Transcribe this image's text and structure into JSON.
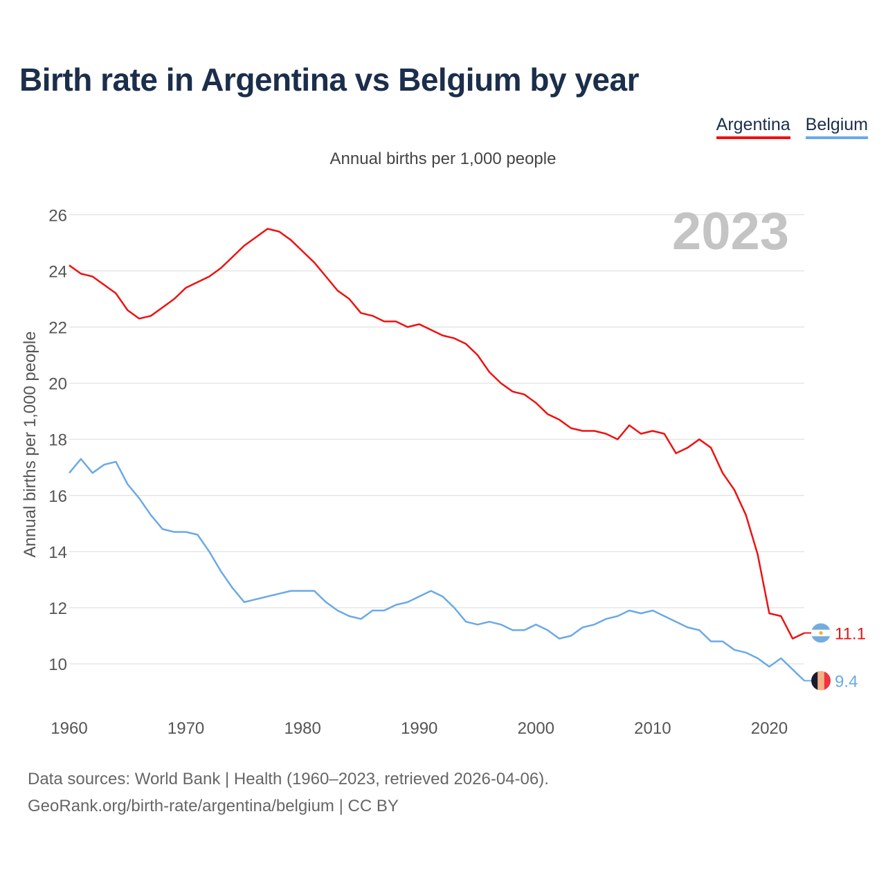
{
  "title": "Birth rate in Argentina vs Belgium by year",
  "legend": [
    {
      "name": "Argentina",
      "color": "#ee1111"
    },
    {
      "name": "Belgium",
      "color": "#6aa9e6"
    }
  ],
  "source_lines": [
    "Data sources: World Bank | Health (1960–2023, retrieved 2026-04-06).",
    "GeoRank.org/birth-rate/argentina/belgium | CC BY"
  ],
  "chart_data": {
    "type": "line",
    "title": "Birth rate in Argentina vs Belgium by year",
    "subtitle": "Annual births per 1,000 people",
    "xlabel": "",
    "ylabel": "Annual births per 1,000 people",
    "year_watermark": "2023",
    "xlim": [
      1960,
      2023
    ],
    "ylim": [
      8.3,
      26.5
    ],
    "x_ticks": [
      1960,
      1970,
      1980,
      1990,
      2000,
      2010,
      2020
    ],
    "y_ticks": [
      10,
      12,
      14,
      16,
      18,
      20,
      22,
      24,
      26
    ],
    "grid": true,
    "x": [
      1960,
      1961,
      1962,
      1963,
      1964,
      1965,
      1966,
      1967,
      1968,
      1969,
      1970,
      1971,
      1972,
      1973,
      1974,
      1975,
      1976,
      1977,
      1978,
      1979,
      1980,
      1981,
      1982,
      1983,
      1984,
      1985,
      1986,
      1987,
      1988,
      1989,
      1990,
      1991,
      1992,
      1993,
      1994,
      1995,
      1996,
      1997,
      1998,
      1999,
      2000,
      2001,
      2002,
      2003,
      2004,
      2005,
      2006,
      2007,
      2008,
      2009,
      2010,
      2011,
      2012,
      2013,
      2014,
      2015,
      2016,
      2017,
      2018,
      2019,
      2020,
      2021,
      2022,
      2023
    ],
    "series": [
      {
        "name": "Argentina",
        "color": "#ee1111",
        "end_label": "11.1",
        "values": [
          24.2,
          23.9,
          23.8,
          23.5,
          23.2,
          22.6,
          22.3,
          22.4,
          22.7,
          23.0,
          23.4,
          23.6,
          23.8,
          24.1,
          24.5,
          24.9,
          25.2,
          25.5,
          25.4,
          25.1,
          24.7,
          24.3,
          23.8,
          23.3,
          23.0,
          22.5,
          22.4,
          22.2,
          22.2,
          22.0,
          22.1,
          21.9,
          21.7,
          21.6,
          21.4,
          21.0,
          20.4,
          20.0,
          19.7,
          19.6,
          19.3,
          18.9,
          18.7,
          18.4,
          18.3,
          18.3,
          18.2,
          18.0,
          18.5,
          18.2,
          18.3,
          18.2,
          17.5,
          17.7,
          18.0,
          17.7,
          16.8,
          16.2,
          15.3,
          13.9,
          11.8,
          11.7,
          10.9,
          11.1
        ]
      },
      {
        "name": "Belgium",
        "color": "#6aa9e6",
        "end_label": "9.4",
        "values": [
          16.8,
          17.3,
          16.8,
          17.1,
          17.2,
          16.4,
          15.9,
          15.3,
          14.8,
          14.7,
          14.7,
          14.6,
          14.0,
          13.3,
          12.7,
          12.2,
          12.3,
          12.4,
          12.5,
          12.6,
          12.6,
          12.6,
          12.2,
          11.9,
          11.7,
          11.6,
          11.9,
          11.9,
          12.1,
          12.2,
          12.4,
          12.6,
          12.4,
          12.0,
          11.5,
          11.4,
          11.5,
          11.4,
          11.2,
          11.2,
          11.4,
          11.2,
          10.9,
          11.0,
          11.3,
          11.4,
          11.6,
          11.7,
          11.9,
          11.8,
          11.9,
          11.7,
          11.5,
          11.3,
          11.2,
          10.8,
          10.8,
          10.5,
          10.4,
          10.2,
          9.9,
          10.2,
          9.8,
          9.4
        ]
      }
    ]
  }
}
